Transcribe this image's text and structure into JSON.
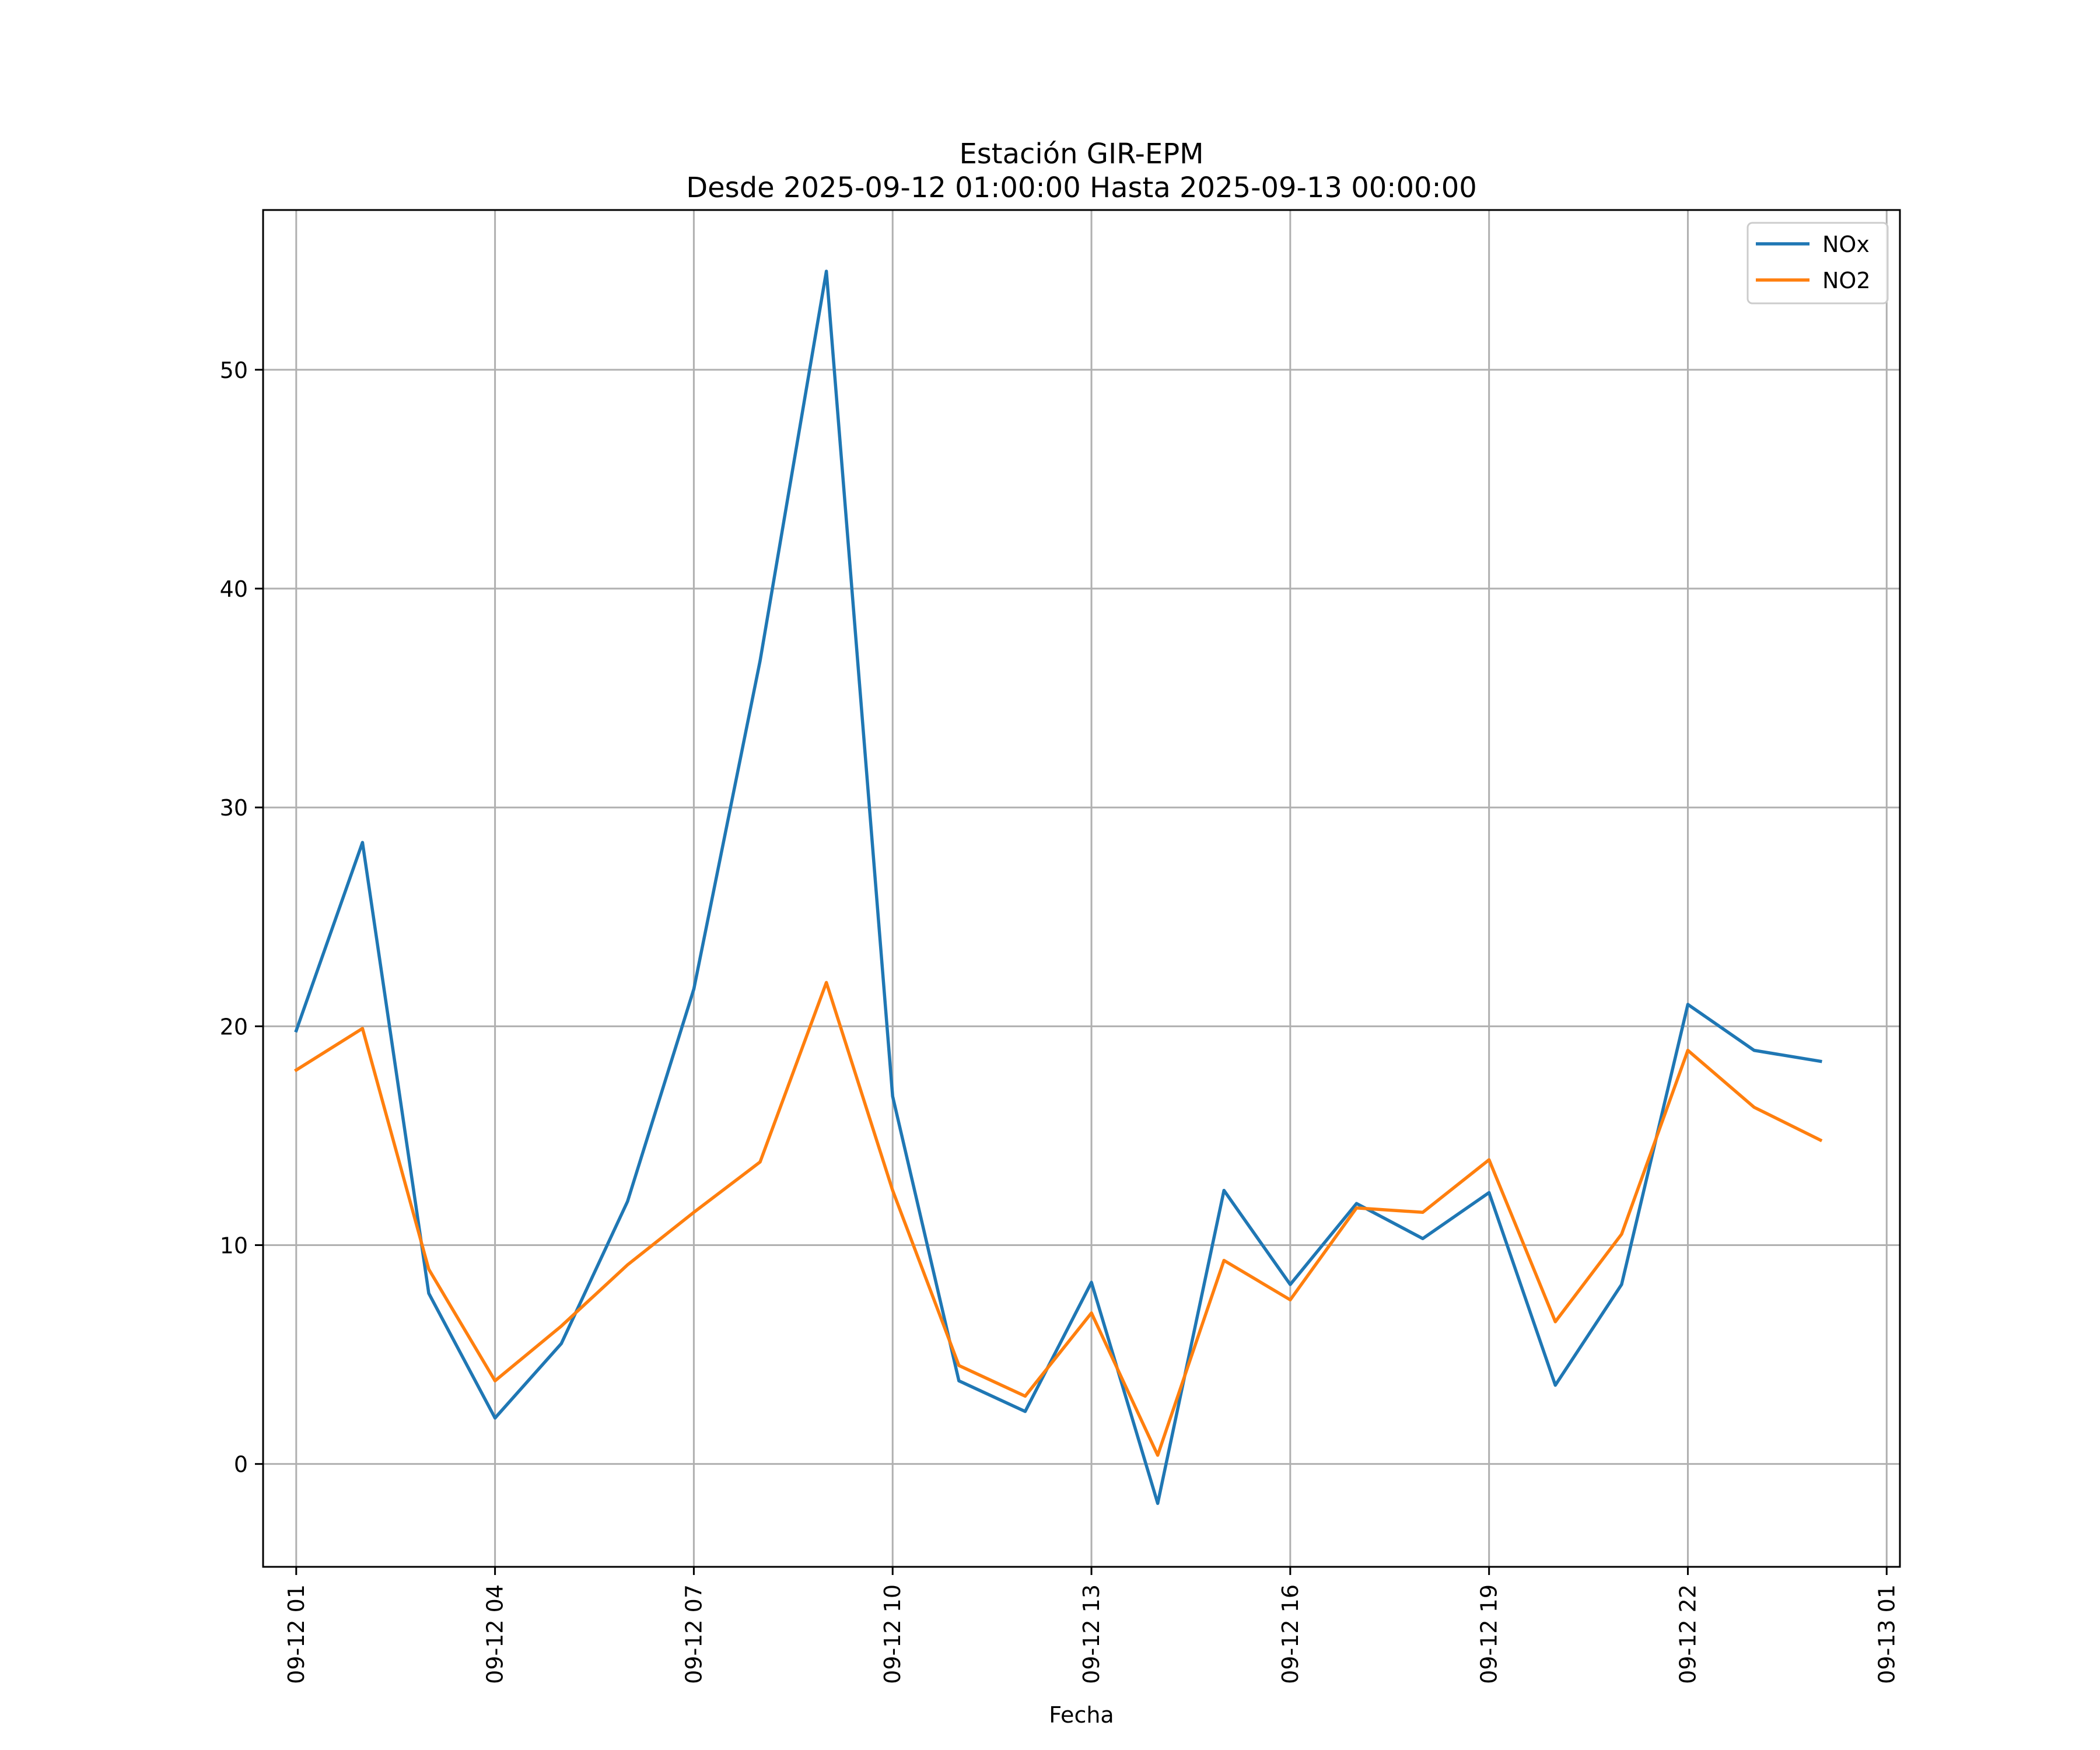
{
  "chart_data": {
    "type": "line",
    "title_line1": "Estación GIR-EPM",
    "title_line2": "Desde 2025-09-12 01:00:00 Hasta 2025-09-13 00:00:00",
    "xlabel": "Fecha",
    "ylabel": "",
    "grid": true,
    "legend_position": "top-right",
    "x_range_hours": [
      -0.5,
      24.2
    ],
    "ylim": [
      -4.7,
      57.3
    ],
    "yticks": [
      0,
      10,
      20,
      30,
      40,
      50
    ],
    "xticks": [
      {
        "hour": 0,
        "label": "09-12 01"
      },
      {
        "hour": 3,
        "label": "09-12 04"
      },
      {
        "hour": 6,
        "label": "09-12 07"
      },
      {
        "hour": 9,
        "label": "09-12 10"
      },
      {
        "hour": 12,
        "label": "09-12 13"
      },
      {
        "hour": 15,
        "label": "09-12 16"
      },
      {
        "hour": 18,
        "label": "09-12 19"
      },
      {
        "hour": 21,
        "label": "09-12 22"
      },
      {
        "hour": 24,
        "label": "09-13 01"
      }
    ],
    "x_hours": [
      0,
      1,
      2,
      3,
      4,
      5,
      6,
      7,
      8,
      9,
      10,
      11,
      12,
      13,
      14,
      15,
      16,
      17,
      18,
      19,
      20,
      21,
      22,
      23
    ],
    "series": [
      {
        "name": "NOx",
        "color": "#1f77b4",
        "values": [
          19.8,
          28.4,
          7.8,
          2.1,
          5.5,
          12.0,
          21.7,
          36.7,
          54.5,
          16.8,
          3.8,
          2.4,
          8.3,
          -1.8,
          12.5,
          8.2,
          11.9,
          10.3,
          12.4,
          3.6,
          8.2,
          21.0,
          18.9,
          18.4
        ]
      },
      {
        "name": "NO2",
        "color": "#ff7f0e",
        "values": [
          18.0,
          19.9,
          8.9,
          3.8,
          6.3,
          9.1,
          11.5,
          13.8,
          22.0,
          12.5,
          4.5,
          3.1,
          6.9,
          0.4,
          9.3,
          7.5,
          11.7,
          11.5,
          13.9,
          6.5,
          10.5,
          18.9,
          16.3,
          14.8
        ]
      }
    ]
  }
}
